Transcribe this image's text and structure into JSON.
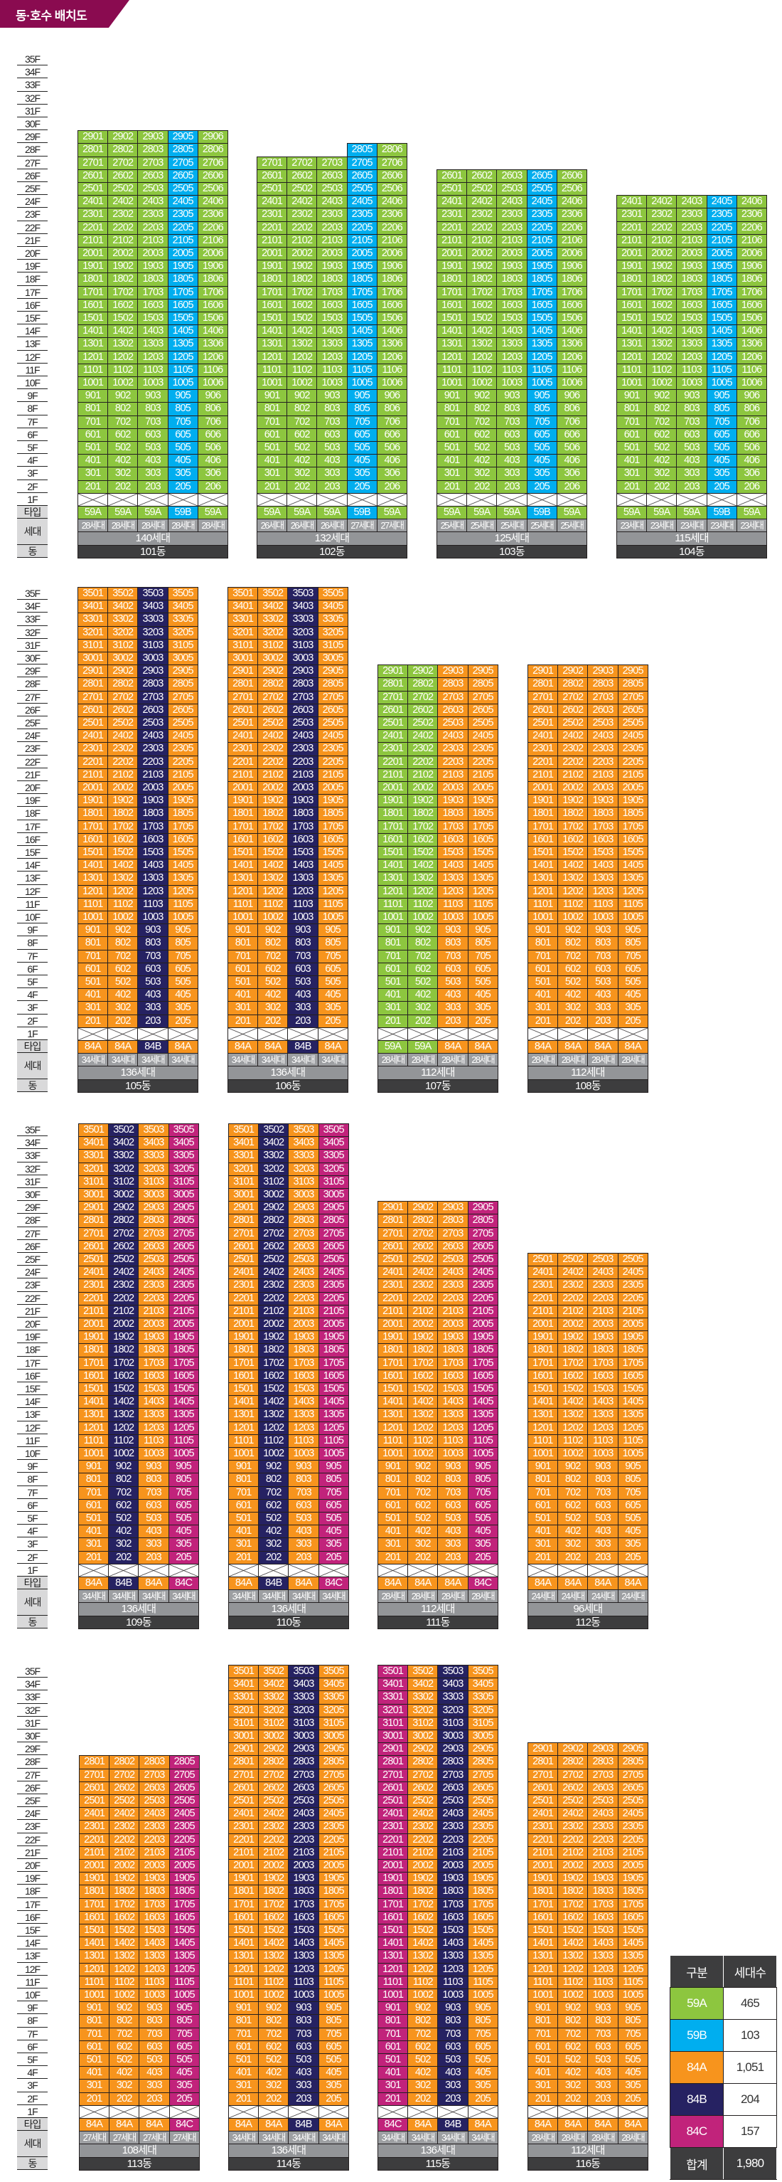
{
  "title": "동·호수 배치도",
  "colors": {
    "59A": "#8dc63f",
    "59B": "#00aeef",
    "84A": "#f7941d",
    "84B": "#262262",
    "84C": "#c1237b"
  },
  "floor_labels": [
    "35F",
    "34F",
    "33F",
    "32F",
    "31F",
    "30F",
    "29F",
    "28F",
    "27F",
    "26F",
    "25F",
    "24F",
    "23F",
    "22F",
    "21F",
    "20F",
    "19F",
    "18F",
    "17F",
    "16F",
    "15F",
    "14F",
    "13F",
    "12F",
    "11F",
    "10F",
    "9F",
    "8F",
    "7F",
    "6F",
    "5F",
    "4F",
    "3F",
    "2F",
    "1F"
  ],
  "row_labels": {
    "type": "타입",
    "units": "세대",
    "building": "동"
  },
  "rows": [
    {
      "buildings": [
        {
          "name": "101동",
          "total": "140세대",
          "columns": [
            {
              "line": "01",
              "type": "59A",
              "top_floor": 29,
              "count": "28세대"
            },
            {
              "line": "02",
              "type": "59A",
              "top_floor": 29,
              "count": "28세대"
            },
            {
              "line": "03",
              "type": "59A",
              "top_floor": 29,
              "count": "28세대"
            },
            {
              "line": "05",
              "type": "59B",
              "top_floor": 29,
              "count": "28세대"
            },
            {
              "line": "06",
              "type": "59A",
              "top_floor": 29,
              "count": "28세대"
            }
          ]
        },
        {
          "name": "102동",
          "total": "132세대",
          "columns": [
            {
              "line": "01",
              "type": "59A",
              "top_floor": 27,
              "count": "26세대"
            },
            {
              "line": "02",
              "type": "59A",
              "top_floor": 27,
              "count": "26세대"
            },
            {
              "line": "03",
              "type": "59A",
              "top_floor": 27,
              "count": "26세대"
            },
            {
              "line": "05",
              "type": "59B",
              "top_floor": 28,
              "count": "27세대"
            },
            {
              "line": "06",
              "type": "59A",
              "top_floor": 28,
              "count": "27세대"
            }
          ]
        },
        {
          "name": "103동",
          "total": "125세대",
          "columns": [
            {
              "line": "01",
              "type": "59A",
              "top_floor": 26,
              "count": "25세대"
            },
            {
              "line": "02",
              "type": "59A",
              "top_floor": 26,
              "count": "25세대"
            },
            {
              "line": "03",
              "type": "59A",
              "top_floor": 26,
              "count": "25세대"
            },
            {
              "line": "05",
              "type": "59B",
              "top_floor": 26,
              "count": "25세대"
            },
            {
              "line": "06",
              "type": "59A",
              "top_floor": 26,
              "count": "25세대"
            }
          ]
        },
        {
          "name": "104동",
          "total": "115세대",
          "columns": [
            {
              "line": "01",
              "type": "59A",
              "top_floor": 24,
              "count": "23세대"
            },
            {
              "line": "02",
              "type": "59A",
              "top_floor": 24,
              "count": "23세대"
            },
            {
              "line": "03",
              "type": "59A",
              "top_floor": 24,
              "count": "23세대"
            },
            {
              "line": "05",
              "type": "59B",
              "top_floor": 24,
              "count": "23세대"
            },
            {
              "line": "06",
              "type": "59A",
              "top_floor": 24,
              "count": "23세대"
            }
          ]
        }
      ]
    },
    {
      "buildings": [
        {
          "name": "105동",
          "total": "136세대",
          "columns": [
            {
              "line": "01",
              "type": "84A",
              "top_floor": 35,
              "count": "34세대"
            },
            {
              "line": "02",
              "type": "84A",
              "top_floor": 35,
              "count": "34세대"
            },
            {
              "line": "03",
              "type": "84B",
              "top_floor": 35,
              "count": "34세대"
            },
            {
              "line": "05",
              "type": "84A",
              "top_floor": 35,
              "count": "34세대"
            }
          ]
        },
        {
          "name": "106동",
          "total": "136세대",
          "columns": [
            {
              "line": "01",
              "type": "84A",
              "top_floor": 35,
              "count": "34세대"
            },
            {
              "line": "02",
              "type": "84A",
              "top_floor": 35,
              "count": "34세대"
            },
            {
              "line": "03",
              "type": "84B",
              "top_floor": 35,
              "count": "34세대"
            },
            {
              "line": "05",
              "type": "84A",
              "top_floor": 35,
              "count": "34세대"
            }
          ]
        },
        {
          "name": "107동",
          "total": "112세대",
          "columns": [
            {
              "line": "01",
              "type": "59A",
              "top_floor": 29,
              "count": "28세대"
            },
            {
              "line": "02",
              "type": "59A",
              "top_floor": 29,
              "count": "28세대"
            },
            {
              "line": "03",
              "type": "84A",
              "top_floor": 29,
              "count": "28세대"
            },
            {
              "line": "05",
              "type": "84A",
              "top_floor": 29,
              "count": "28세대"
            }
          ]
        },
        {
          "name": "108동",
          "total": "112세대",
          "columns": [
            {
              "line": "01",
              "type": "84A",
              "top_floor": 29,
              "count": "28세대"
            },
            {
              "line": "02",
              "type": "84A",
              "top_floor": 29,
              "count": "28세대"
            },
            {
              "line": "03",
              "type": "84A",
              "top_floor": 29,
              "count": "28세대"
            },
            {
              "line": "05",
              "type": "84A",
              "top_floor": 29,
              "count": "28세대"
            }
          ]
        }
      ]
    },
    {
      "buildings": [
        {
          "name": "109동",
          "total": "136세대",
          "columns": [
            {
              "line": "01",
              "type": "84A",
              "top_floor": 35,
              "count": "34세대"
            },
            {
              "line": "02",
              "type": "84B",
              "top_floor": 35,
              "count": "34세대"
            },
            {
              "line": "03",
              "type": "84A",
              "top_floor": 35,
              "count": "34세대"
            },
            {
              "line": "05",
              "type": "84C",
              "top_floor": 35,
              "count": "34세대"
            }
          ]
        },
        {
          "name": "110동",
          "total": "136세대",
          "columns": [
            {
              "line": "01",
              "type": "84A",
              "top_floor": 35,
              "count": "34세대"
            },
            {
              "line": "02",
              "type": "84B",
              "top_floor": 35,
              "count": "34세대"
            },
            {
              "line": "03",
              "type": "84A",
              "top_floor": 35,
              "count": "34세대"
            },
            {
              "line": "05",
              "type": "84C",
              "top_floor": 35,
              "count": "34세대"
            }
          ]
        },
        {
          "name": "111동",
          "total": "112세대",
          "columns": [
            {
              "line": "01",
              "type": "84A",
              "top_floor": 29,
              "count": "28세대"
            },
            {
              "line": "02",
              "type": "84A",
              "top_floor": 29,
              "count": "28세대"
            },
            {
              "line": "03",
              "type": "84A",
              "top_floor": 29,
              "count": "28세대"
            },
            {
              "line": "05",
              "type": "84C",
              "top_floor": 29,
              "count": "28세대"
            }
          ]
        },
        {
          "name": "112동",
          "total": "96세대",
          "columns": [
            {
              "line": "01",
              "type": "84A",
              "top_floor": 25,
              "count": "24세대"
            },
            {
              "line": "02",
              "type": "84A",
              "top_floor": 25,
              "count": "24세대"
            },
            {
              "line": "03",
              "type": "84A",
              "top_floor": 25,
              "count": "24세대"
            },
            {
              "line": "05",
              "type": "84A",
              "top_floor": 25,
              "count": "24세대"
            }
          ]
        }
      ]
    },
    {
      "buildings": [
        {
          "name": "113동",
          "total": "108세대",
          "columns": [
            {
              "line": "01",
              "type": "84A",
              "top_floor": 28,
              "count": "27세대"
            },
            {
              "line": "02",
              "type": "84A",
              "top_floor": 28,
              "count": "27세대"
            },
            {
              "line": "03",
              "type": "84A",
              "top_floor": 28,
              "count": "27세대"
            },
            {
              "line": "05",
              "type": "84C",
              "top_floor": 28,
              "count": "27세대"
            }
          ]
        },
        {
          "name": "114동",
          "total": "136세대",
          "columns": [
            {
              "line": "01",
              "type": "84A",
              "top_floor": 35,
              "count": "34세대"
            },
            {
              "line": "02",
              "type": "84A",
              "top_floor": 35,
              "count": "34세대"
            },
            {
              "line": "03",
              "type": "84B",
              "top_floor": 35,
              "count": "34세대"
            },
            {
              "line": "05",
              "type": "84A",
              "top_floor": 35,
              "count": "34세대"
            }
          ]
        },
        {
          "name": "115동",
          "total": "136세대",
          "columns": [
            {
              "line": "01",
              "type": "84C",
              "top_floor": 35,
              "count": "34세대"
            },
            {
              "line": "02",
              "type": "84A",
              "top_floor": 35,
              "count": "34세대"
            },
            {
              "line": "03",
              "type": "84B",
              "top_floor": 35,
              "count": "34세대"
            },
            {
              "line": "05",
              "type": "84A",
              "top_floor": 35,
              "count": "34세대"
            }
          ]
        },
        {
          "name": "116동",
          "total": "112세대",
          "columns": [
            {
              "line": "01",
              "type": "84A",
              "top_floor": 29,
              "count": "28세대"
            },
            {
              "line": "02",
              "type": "84A",
              "top_floor": 29,
              "count": "28세대"
            },
            {
              "line": "03",
              "type": "84A",
              "top_floor": 29,
              "count": "28세대"
            },
            {
              "line": "05",
              "type": "84A",
              "top_floor": 29,
              "count": "28세대"
            }
          ]
        }
      ]
    }
  ],
  "legend": {
    "header": [
      "구분",
      "세대수"
    ],
    "rows": [
      {
        "type": "59A",
        "count": "465"
      },
      {
        "type": "59B",
        "count": "103"
      },
      {
        "type": "84A",
        "count": "1,051"
      },
      {
        "type": "84B",
        "count": "204"
      },
      {
        "type": "84C",
        "count": "157"
      }
    ],
    "total_label": "합계",
    "total": "1,980"
  }
}
